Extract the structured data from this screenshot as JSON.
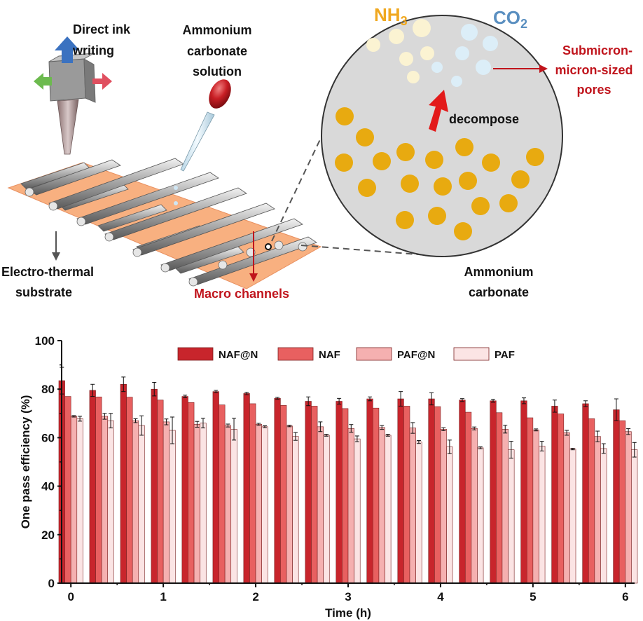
{
  "schematic": {
    "labels": {
      "direct_ink_line1": "Direct ink",
      "direct_ink_line2": "writing",
      "ammonium_solution_line1": "Ammonium",
      "ammonium_solution_line2": "carbonate",
      "ammonium_solution_line3": "solution",
      "electro_thermal_line1": "Electro-thermal",
      "electro_thermal_line2": "substrate",
      "macro_channels": "Macro channels",
      "nh3_main": "NH",
      "nh3_sub": "3",
      "co2_main": "CO",
      "co2_sub": "2",
      "submicron_line1": "Submicron-",
      "submicron_line2": "micron-sized",
      "submicron_line3": "pores",
      "decompose": "decompose",
      "ammonium_carbonate_line1": "Ammonium",
      "ammonium_carbonate_line2": "carbonate"
    },
    "colors": {
      "nh3": "#f0a820",
      "co2": "#5a8fc0",
      "red_label": "#c0141c",
      "circle_fill": "#d9d9d9",
      "particle": "#e8aa10",
      "substrate": "#f8b080"
    }
  },
  "chart_data": {
    "type": "bar",
    "title": "",
    "xlabel": "Time (h)",
    "ylabel": "One pass efficiency (%)",
    "ylim": [
      0,
      100
    ],
    "yticks": [
      0,
      20,
      40,
      60,
      80,
      100
    ],
    "xlim": [
      -0.1,
      6.1
    ],
    "xticks": [
      0,
      1,
      2,
      3,
      4,
      5,
      6
    ],
    "legend_position": "top",
    "x": [
      0,
      0.333,
      0.667,
      1,
      1.333,
      1.667,
      2,
      2.333,
      2.667,
      3,
      3.333,
      3.667,
      4,
      4.333,
      4.667,
      5,
      5.333,
      5.667,
      6
    ],
    "series": [
      {
        "name": "NAF@N",
        "color": "#c8252c",
        "values": [
          83.5,
          79.5,
          82,
          80,
          77,
          79,
          78.2,
          76.2,
          75,
          75,
          76,
          76,
          76,
          75.5,
          75.2,
          75.2,
          73,
          74,
          71.5
        ],
        "errors": [
          5.5,
          2.5,
          3,
          2.8,
          0.5,
          0.5,
          0.5,
          0.4,
          1.8,
          1.2,
          0.8,
          3,
          2.5,
          0.6,
          0.6,
          1.2,
          2.5,
          1.2,
          4.5
        ]
      },
      {
        "name": "NAF",
        "color": "#e86060",
        "values": [
          77,
          76.8,
          76.7,
          75.5,
          74.5,
          73.5,
          74,
          73.3,
          73,
          72,
          72.2,
          73,
          72.8,
          70.5,
          70.3,
          68.2,
          69.8,
          67.8,
          67
        ]
      },
      {
        "name": "PAF@N",
        "color": "#f5b0b0",
        "values": [
          68.8,
          68.8,
          67,
          66.5,
          65.5,
          65,
          65.5,
          64.8,
          64.5,
          63.8,
          64.2,
          64,
          63.5,
          63.8,
          63.5,
          63.2,
          62,
          60.5,
          62.5
        ],
        "errors": [
          0.3,
          1.2,
          0.8,
          1.2,
          1.2,
          0.6,
          0.4,
          0.3,
          2,
          1.6,
          0.8,
          2.2,
          0.6,
          0.6,
          1.6,
          0.4,
          1,
          2.2,
          1.2
        ]
      },
      {
        "name": "PAF",
        "color": "#fbe4e4",
        "values": [
          67.8,
          67,
          65,
          63,
          66,
          63.5,
          64.5,
          60.5,
          61,
          59.5,
          61,
          58.2,
          56.2,
          55.8,
          55,
          56.5,
          55.3,
          55.5,
          55
        ],
        "errors": [
          1,
          3,
          4,
          5.5,
          2,
          4.5,
          0.4,
          1.6,
          0.4,
          1.2,
          0.4,
          0.6,
          2.8,
          0.4,
          3.5,
          2,
          0.3,
          2,
          3
        ]
      }
    ]
  }
}
